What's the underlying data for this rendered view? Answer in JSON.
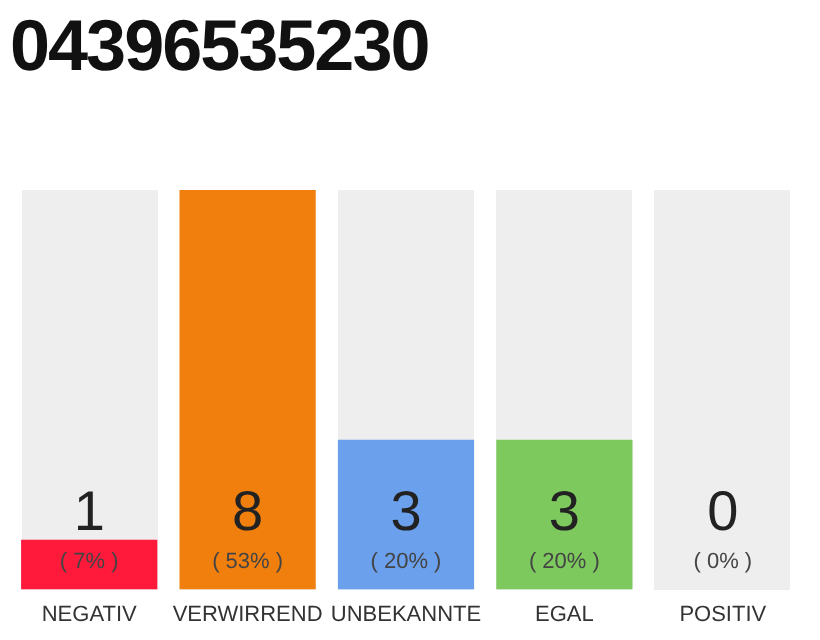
{
  "chart_data": {
    "type": "bar",
    "title": "04396535230",
    "categories": [
      "NEGATIV",
      "VERWIRREND",
      "UNBEKANNTE",
      "EGAL",
      "POSITIV"
    ],
    "values": [
      1,
      8,
      3,
      3,
      0
    ],
    "colors": [
      "#ff1a3c",
      "#f07f0e",
      "#6aa0ec",
      "#7dc95e",
      "#bbbbbb"
    ],
    "data_labels": true,
    "annotations": [
      "( 7% )",
      "( 53% )",
      "( 20% )",
      "( 20% )",
      "( 0% )"
    ],
    "legend": false,
    "grid": false
  }
}
